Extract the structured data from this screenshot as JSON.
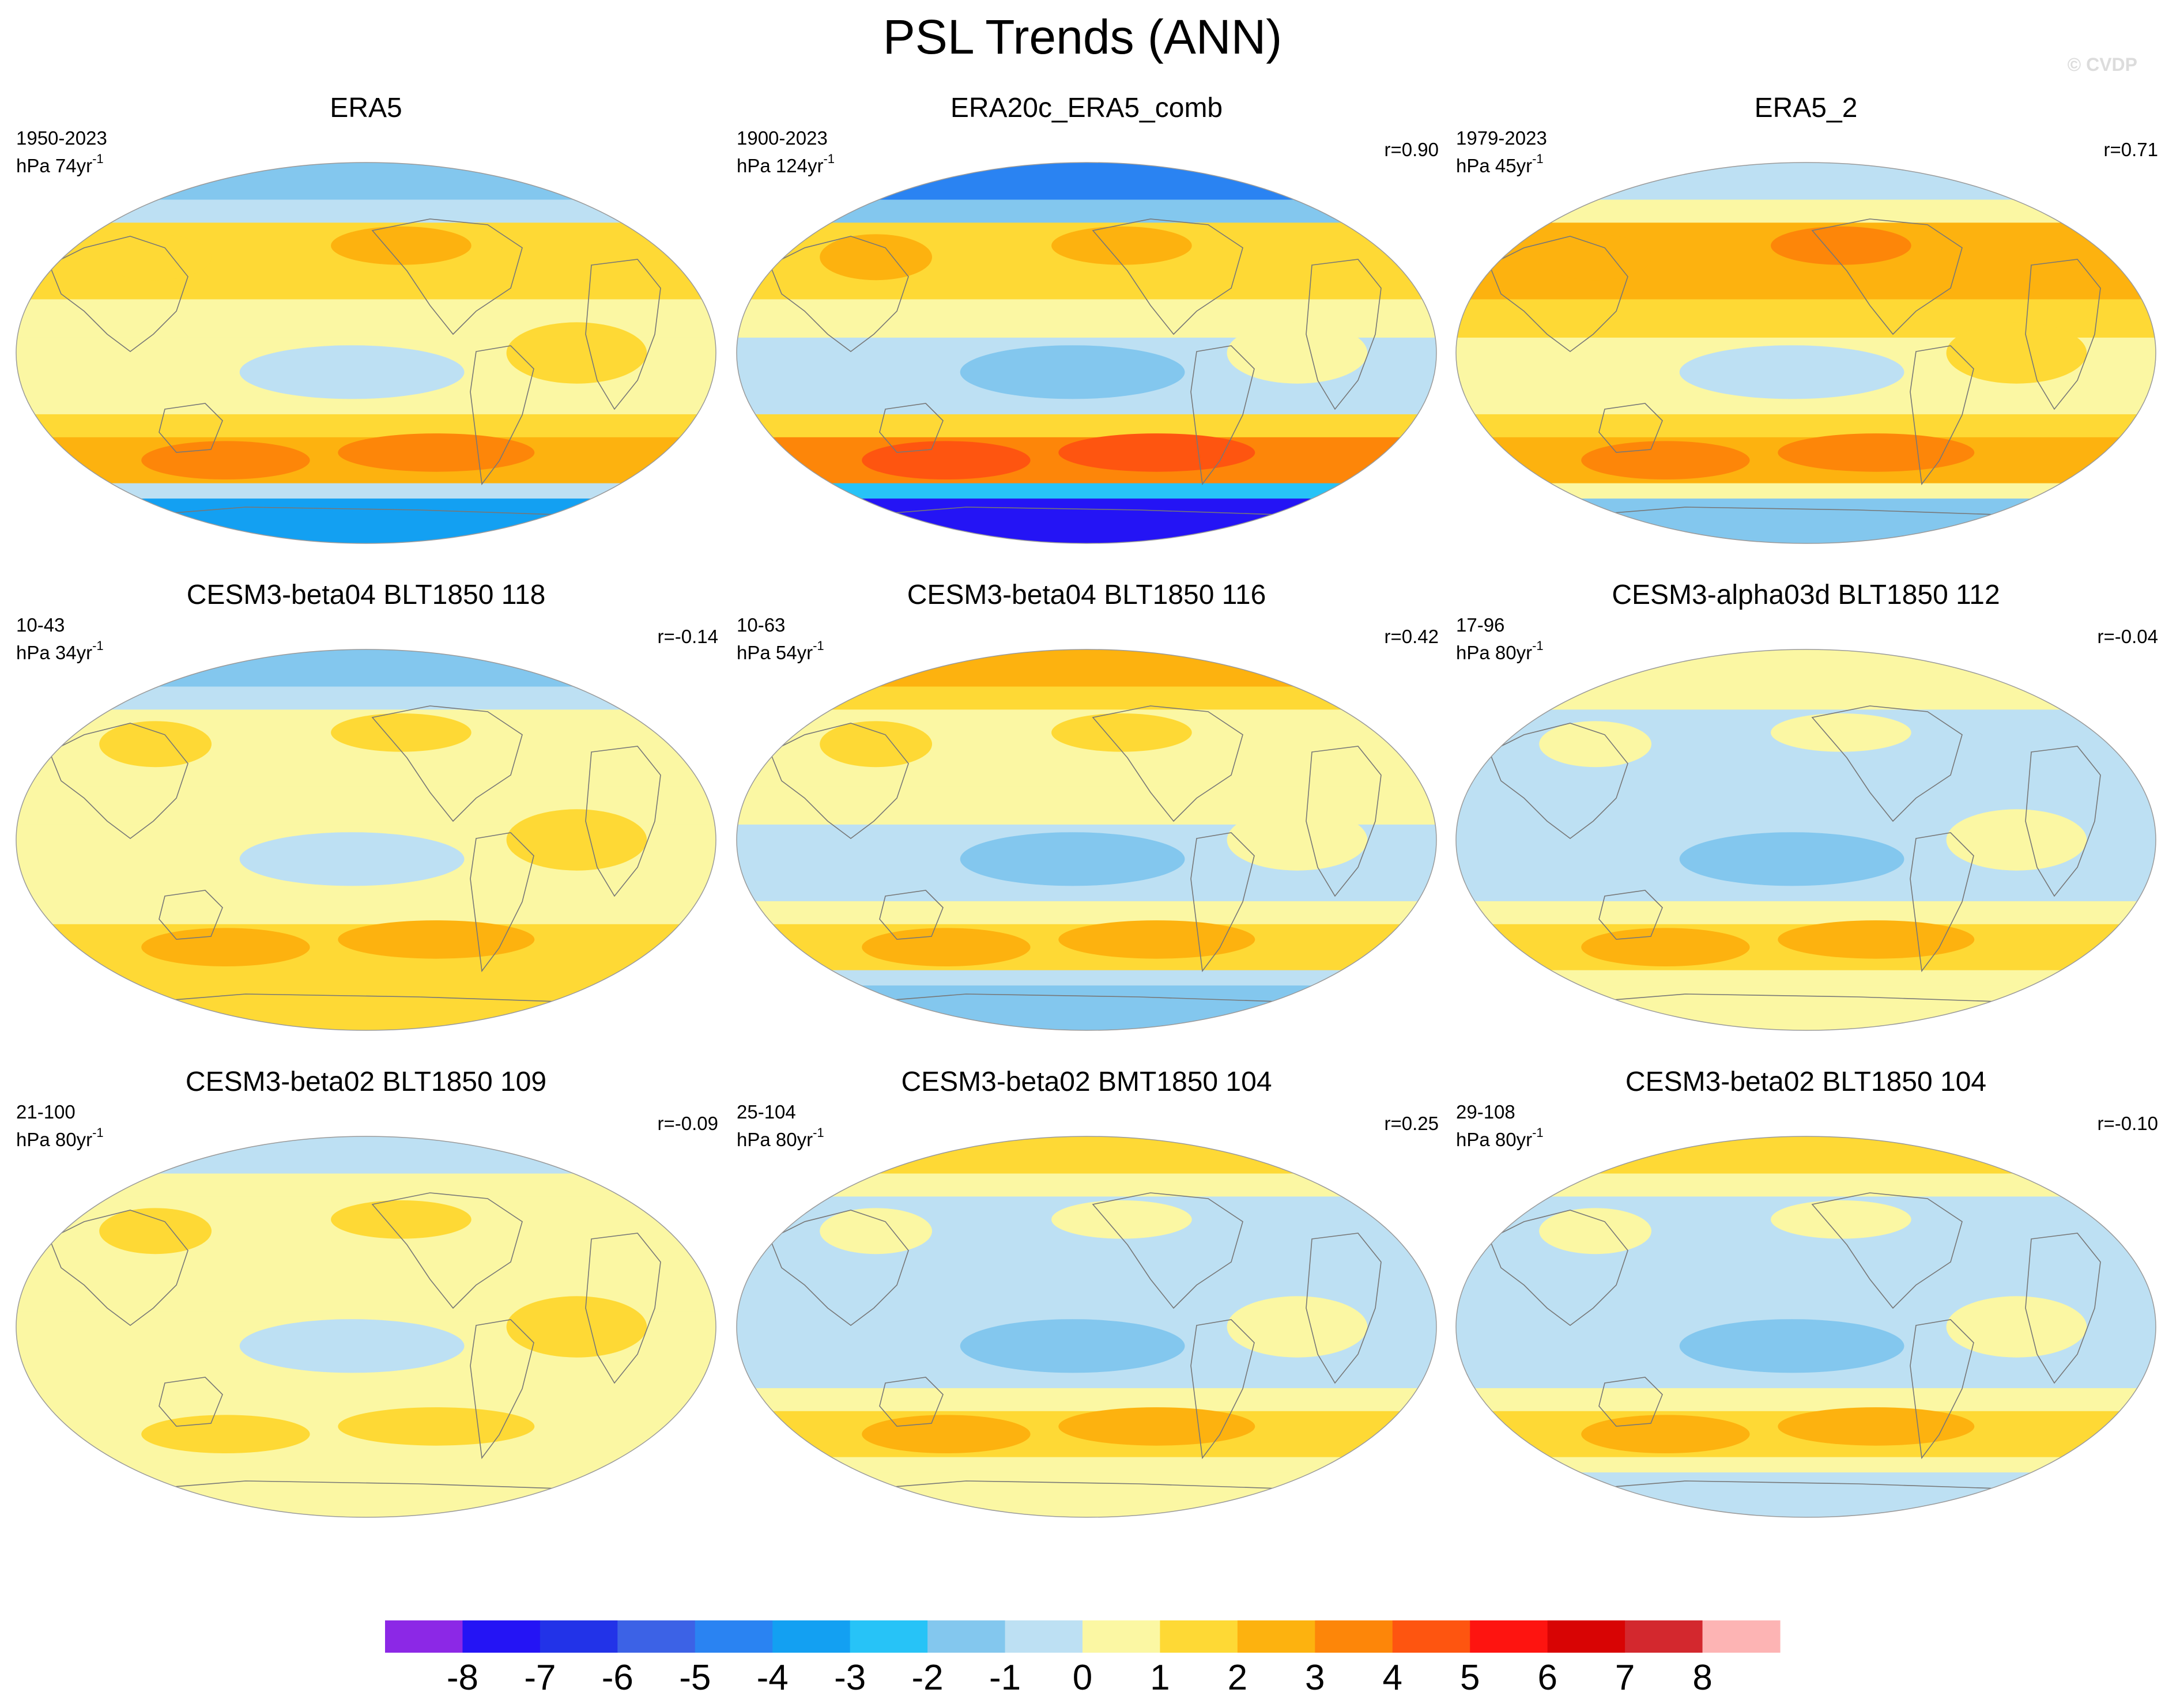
{
  "title": "PSL Trends (ANN)",
  "credit": "© CVDP",
  "chart_data": {
    "type": "heatmap",
    "projection": "Robinson-like global maps",
    "variable": "PSL trends, annual mean",
    "colorbar": {
      "levels": [
        -8,
        -7,
        -6,
        -5,
        -4,
        -3,
        -2,
        -1,
        0,
        1,
        2,
        3,
        4,
        5,
        6,
        7,
        8
      ],
      "tick_labels": [
        "-8",
        "-7",
        "-6",
        "-5",
        "-4",
        "-3",
        "-2",
        "-1",
        "0",
        "1",
        "2",
        "3",
        "4",
        "5",
        "6",
        "7",
        "8"
      ],
      "colors": [
        "#8c28e6",
        "#2414f5",
        "#2233e8",
        "#3c62e6",
        "#2a83f2",
        "#13a0f2",
        "#27c3f7",
        "#83c7ee",
        "#bde0f3",
        "#fbf7a3",
        "#fed935",
        "#fdb20f",
        "#fd8609",
        "#fe5510",
        "#fe1410",
        "#d80404",
        "#d3282e",
        "#fdb4b4"
      ]
    },
    "panels": [
      {
        "title": "ERA5",
        "period": "1950-2023",
        "units": "hPa 74yr",
        "units_exp": "-1",
        "r": "",
        "regime": {
          "arctic": -1.5,
          "north_midlat": 1.0,
          "tropics": 0.0,
          "south_midlat": 2.0,
          "antarctic": -4.0
        }
      },
      {
        "title": "ERA20c_ERA5_comb",
        "period": "1900-2023",
        "units": "hPa 124yr",
        "units_exp": "-1",
        "r": "r=0.90",
        "regime": {
          "arctic": -5.0,
          "north_midlat": 1.5,
          "tropics": -0.5,
          "south_midlat": 3.0,
          "antarctic": -8.0
        }
      },
      {
        "title": "ERA5_2",
        "period": "1979-2023",
        "units": "hPa 45yr",
        "units_exp": "-1",
        "r": "r=0.71",
        "regime": {
          "arctic": -0.5,
          "north_midlat": 2.0,
          "tropics": 0.5,
          "south_midlat": 2.0,
          "antarctic": -2.0
        }
      },
      {
        "title": "CESM3-beta04 BLT1850 118",
        "period": "10-43",
        "units": "hPa 34yr",
        "units_exp": "-1",
        "r": "r=-0.14",
        "regime": {
          "arctic": -1.5,
          "north_midlat": 0.5,
          "tropics": 0.0,
          "south_midlat": 1.0,
          "antarctic": 1.0
        }
      },
      {
        "title": "CESM3-beta04 BLT1850 116",
        "period": "10-63",
        "units": "hPa 54yr",
        "units_exp": "-1",
        "r": "r=0.42",
        "regime": {
          "arctic": 2.5,
          "north_midlat": 0.5,
          "tropics": -0.5,
          "south_midlat": 1.0,
          "antarctic": -1.5
        }
      },
      {
        "title": "CESM3-alpha03d BLT1850 112",
        "period": "17-96",
        "units": "hPa 80yr",
        "units_exp": "-1",
        "r": "r=-0.04",
        "regime": {
          "arctic": 0.5,
          "north_midlat": -0.5,
          "tropics": -0.5,
          "south_midlat": 1.0,
          "antarctic": 0.5
        }
      },
      {
        "title": "CESM3-beta02 BLT1850 109",
        "period": "21-100",
        "units": "hPa 80yr",
        "units_exp": "-1",
        "r": "r=-0.09",
        "regime": {
          "arctic": -0.5,
          "north_midlat": 0.5,
          "tropics": 0.5,
          "south_midlat": 0.5,
          "antarctic": 0.5
        }
      },
      {
        "title": "CESM3-beta02 BMT1850 104",
        "period": "25-104",
        "units": "hPa 80yr",
        "units_exp": "-1",
        "r": "r=0.25",
        "regime": {
          "arctic": 1.0,
          "north_midlat": -0.5,
          "tropics": -0.5,
          "south_midlat": 1.0,
          "antarctic": 0.5
        }
      },
      {
        "title": "CESM3-beta02 BLT1850 104",
        "period": "29-108",
        "units": "hPa 80yr",
        "units_exp": "-1",
        "r": "r=-0.10",
        "regime": {
          "arctic": 1.5,
          "north_midlat": -0.5,
          "tropics": -0.5,
          "south_midlat": 1.0,
          "antarctic": -0.5
        }
      }
    ]
  }
}
